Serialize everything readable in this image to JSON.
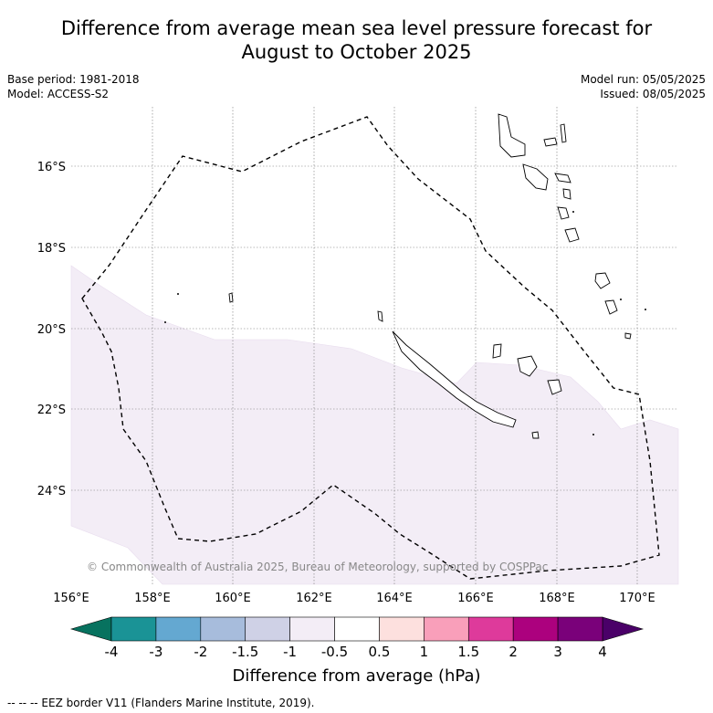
{
  "title_line1": "Difference from average mean sea level pressure forecast for",
  "title_line2": "August to October 2025",
  "meta_left": [
    "Base period: 1981-2018",
    "Model: ACCESS-S2"
  ],
  "meta_right": [
    "Model run: 05/05/2025",
    "Issued: 08/05/2025"
  ],
  "lon_labels": [
    "156°E",
    "158°E",
    "160°E",
    "162°E",
    "164°E",
    "166°E",
    "168°E",
    "170°E"
  ],
  "lat_labels": [
    "16°S",
    "18°S",
    "20°S",
    "22°S",
    "24°S"
  ],
  "copyright": "© Commonwealth of Australia 2025, Bureau of Meteorology, supported by COSPPac",
  "colorbar": {
    "title": "Difference from average (hPa)",
    "ticks": [
      "-4",
      "-3",
      "-2",
      "-1.5",
      "-1",
      "-0.5",
      "0.5",
      "1",
      "1.5",
      "2",
      "3",
      "4"
    ],
    "colors": [
      "#1a9396",
      "#64a8d1",
      "#a7bcdc",
      "#cfd1e6",
      "#f3edf6",
      "#ffffff",
      "#fde0de",
      "#f99fba",
      "#de3a9b",
      "#ac017e",
      "#7a017a"
    ],
    "extend_low_color": "#07725f",
    "extend_high_color": "#4a0068"
  },
  "footer": "-- -- -- EEZ border V11 (Flanders Marine Institute, 2019).",
  "map_data": {
    "region": "New Caledonia",
    "lon_range": [
      156,
      171
    ],
    "lat_range": [
      -26.2,
      -14.4
    ],
    "shaded_category": "-1 to -0.5",
    "shaded_color": "#f3edf6"
  }
}
